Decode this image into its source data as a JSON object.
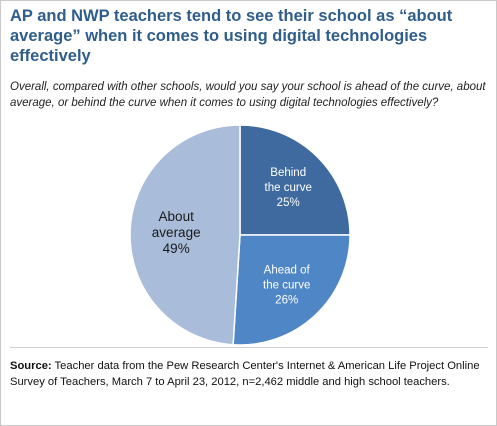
{
  "title": "AP and NWP teachers tend to see their school as “about average” when it comes to using digital technologies effectively",
  "subtitle": "Overall, compared with other schools, would you say your school is ahead of the curve, about average, or behind the curve when it comes to using digital technologies effectively?",
  "source": {
    "label": "Source:",
    "text": " Teacher data from the Pew Research Center's Internet & American Life Project Online Survey of Teachers, March 7 to April 23, 2012, n=2,462 middle and high school teachers."
  },
  "colors": {
    "title": "#2f5d8c",
    "behind": "#3e6aa0",
    "ahead": "#4f86c6",
    "average": "#a9bcd9"
  },
  "chart_data": {
    "type": "pie",
    "title": "",
    "slices": [
      {
        "label_lines": [
          "Behind",
          "the curve"
        ],
        "value": 25,
        "value_label": "25%",
        "color": "#3e6aa0",
        "label_style": "light"
      },
      {
        "label_lines": [
          "Ahead of",
          "the curve"
        ],
        "value": 26,
        "value_label": "26%",
        "color": "#4f86c6",
        "label_style": "light"
      },
      {
        "label_lines": [
          "About",
          "average"
        ],
        "value": 49,
        "value_label": "49%",
        "color": "#a9bcd9",
        "label_style": "dark"
      }
    ]
  }
}
